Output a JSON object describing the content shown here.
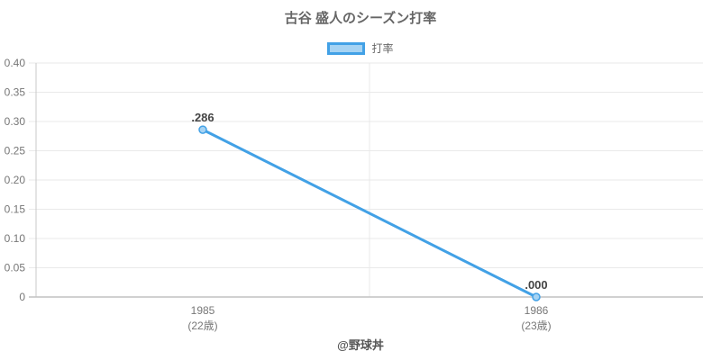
{
  "footer": "@野球丼",
  "colors": {
    "line": "#42A1E6",
    "point_fill": "#A6D3F3",
    "grid": "#E9E9E9",
    "axis": "#C9C9C9",
    "bottom_axis": "#C2C2C2",
    "title_text": "#666666",
    "tick_text": "#777777",
    "data_label_text": "#444444",
    "footer_text": "#555555"
  },
  "chart_data": {
    "type": "line",
    "title": "古谷 盛人のシーズン打率",
    "categories": [
      "1985",
      "1986"
    ],
    "category_sublabels": [
      "(22歳)",
      "(23歳)"
    ],
    "series": [
      {
        "name": "打率",
        "values": [
          0.286,
          0.0
        ],
        "point_labels": [
          ".286",
          ".000"
        ]
      }
    ],
    "xlabel": "",
    "ylabel": "",
    "ylim": [
      0,
      0.4
    ],
    "y_ticks": {
      "values": [
        0,
        0.05,
        0.1,
        0.15,
        0.2,
        0.25,
        0.3,
        0.35,
        0.4
      ],
      "labels": [
        "0",
        "0.05",
        "0.10",
        "0.15",
        "0.20",
        "0.25",
        "0.30",
        "0.35",
        "0.40"
      ]
    },
    "grid": true,
    "legend_position": "top"
  }
}
